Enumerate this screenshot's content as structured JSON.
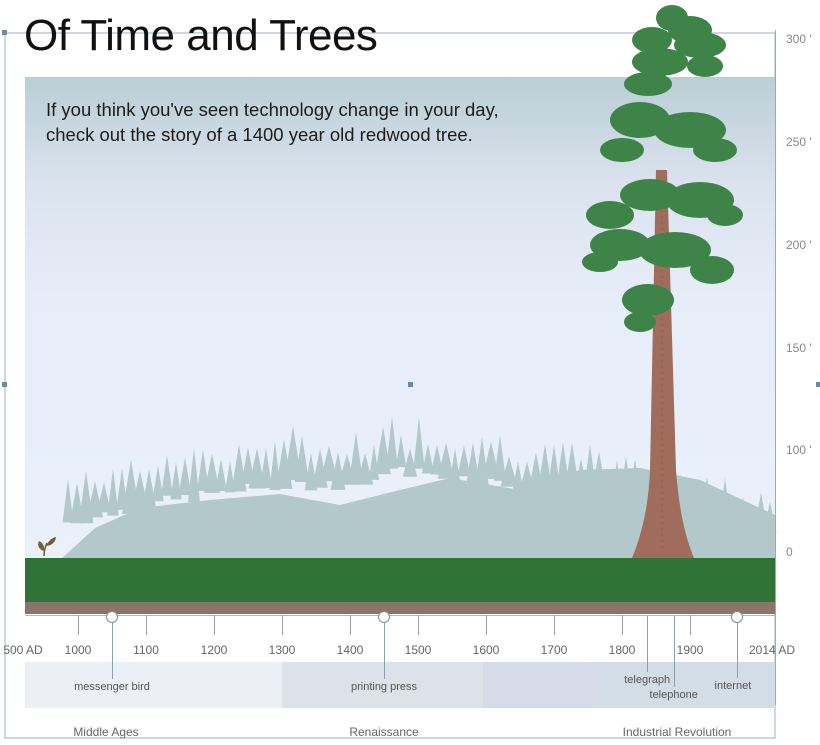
{
  "title": "Of Time and Trees",
  "intro": {
    "line1": "If you think you've seen technology change in your day,",
    "line2": "check out the story of a 1400 year old redwood tree."
  },
  "colors": {
    "grass": "#2f7336",
    "soil": "#8b756a",
    "trunk": "#a06d5d",
    "foliage": "#3e8449",
    "distant_trees": "#b2c8cb",
    "sprout": "#6f5c3a"
  },
  "height_axis": {
    "ticks": [
      "300 '",
      "250 '",
      "200 '",
      "150 '",
      "100 '",
      "0"
    ]
  },
  "timeline": {
    "start_label": "500 AD",
    "end_label": "2014 AD",
    "year_ticks": [
      "1000",
      "1100",
      "1200",
      "1300",
      "1400",
      "1500",
      "1600",
      "1700",
      "1800",
      "1900"
    ],
    "events": [
      {
        "year": 1050,
        "label": "messenger bird"
      },
      {
        "year": 1450,
        "label": "printing press"
      },
      {
        "year": 1837,
        "label": "telegraph"
      },
      {
        "year": 1876,
        "label": "telephone"
      },
      {
        "year": 1969,
        "label": "internet"
      }
    ],
    "eras": [
      {
        "label": "Middle Ages",
        "color": "#eceff5"
      },
      {
        "label": "Renaissance",
        "color": "#dde1ea"
      },
      {
        "label": "",
        "color": "#d5dbe8"
      },
      {
        "label": "Industrial Revolution",
        "color": "#d3dde6"
      }
    ]
  }
}
